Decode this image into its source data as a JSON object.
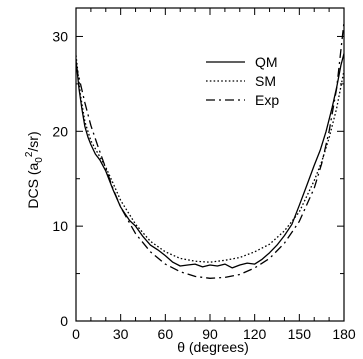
{
  "chart_data": {
    "type": "line",
    "xlabel_main": "θ (degrees)",
    "ylabel": {
      "prefix": "DCS (a",
      "sub": "0",
      "sup": "2",
      "suffix": "/sr)"
    },
    "xlim": [
      0,
      180
    ],
    "ylim": [
      0,
      33
    ],
    "xticks": [
      0,
      30,
      60,
      90,
      120,
      150,
      180
    ],
    "yticks": [
      0,
      10,
      20,
      30
    ],
    "grid": false,
    "legend_placement": "top-right",
    "series": [
      {
        "name": "QM",
        "style": "solid",
        "x": [
          0,
          2,
          4,
          6,
          8,
          10,
          13,
          16,
          20,
          25,
          30,
          36,
          40,
          45,
          50,
          55,
          60,
          65,
          70,
          75,
          80,
          85,
          90,
          95,
          100,
          105,
          110,
          115,
          120,
          125,
          130,
          135,
          140,
          145,
          150,
          155,
          160,
          164,
          168,
          172,
          175,
          178,
          180
        ],
        "y": [
          27.5,
          24.5,
          22.3,
          20.5,
          19.4,
          18.6,
          17.6,
          17.0,
          15.8,
          13.8,
          12.0,
          10.6,
          10.0,
          8.9,
          8.0,
          7.5,
          6.9,
          6.2,
          5.8,
          5.9,
          6.0,
          5.7,
          5.9,
          5.8,
          6.0,
          5.6,
          5.9,
          6.1,
          6.0,
          6.5,
          7.2,
          8.0,
          9.0,
          10.2,
          12.2,
          14.3,
          16.4,
          18.0,
          20.0,
          22.5,
          24.6,
          27.0,
          28.2
        ]
      },
      {
        "name": "SM",
        "style": "dotted",
        "x": [
          0,
          3,
          6,
          10,
          15,
          20,
          25,
          30,
          40,
          50,
          60,
          70,
          80,
          90,
          100,
          110,
          120,
          130,
          140,
          150,
          160,
          165,
          170,
          175,
          180
        ],
        "y": [
          28.0,
          23.8,
          21.0,
          19.0,
          17.6,
          16.2,
          14.5,
          12.7,
          10.2,
          8.4,
          7.3,
          6.6,
          6.3,
          6.2,
          6.4,
          6.7,
          7.3,
          8.1,
          9.5,
          11.5,
          14.8,
          16.8,
          19.3,
          22.4,
          26.4
        ]
      },
      {
        "name": "Exp",
        "style": "dashdot",
        "x": [
          0,
          3,
          6,
          10,
          15,
          20,
          25,
          30,
          40,
          50,
          60,
          70,
          80,
          90,
          100,
          110,
          120,
          130,
          140,
          150,
          160,
          165,
          170,
          175,
          180
        ],
        "y": [
          27.0,
          25.0,
          23.0,
          20.6,
          18.3,
          16.1,
          13.9,
          12.0,
          9.2,
          7.3,
          6.0,
          5.2,
          4.7,
          4.5,
          4.6,
          4.9,
          5.6,
          6.6,
          8.2,
          10.5,
          14.0,
          16.6,
          20.0,
          24.5,
          31.5
        ]
      }
    ]
  }
}
